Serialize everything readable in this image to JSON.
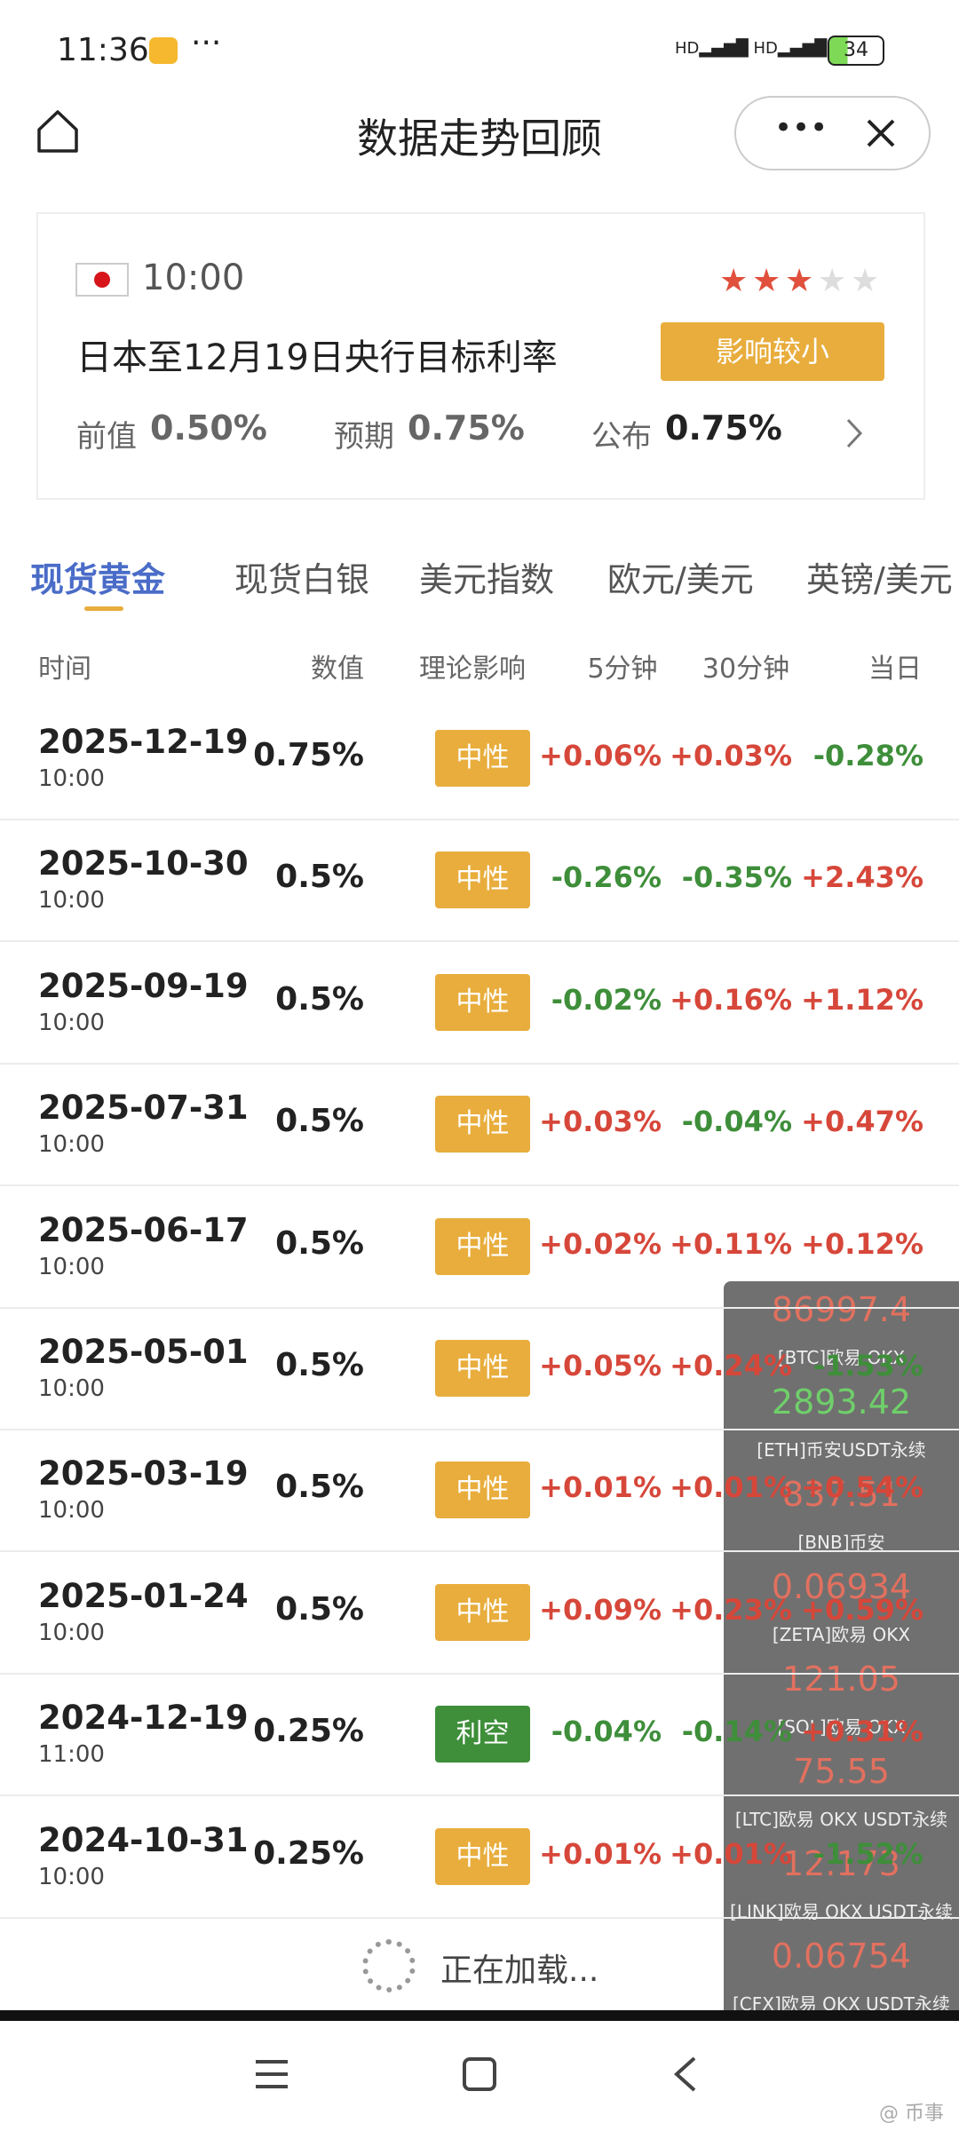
{
  "status_bar": {
    "time": "11:36",
    "battery": "34"
  },
  "header": {
    "title": "数据走势回顾"
  },
  "event": {
    "time": "10:00",
    "title": "日本至12月19日央行目标利率",
    "impact": "影响较小",
    "rating": 3,
    "rating_max": 5,
    "stats": [
      {
        "label": "前值",
        "value": "0.50%"
      },
      {
        "label": "预期",
        "value": "0.75%"
      },
      {
        "label": "公布",
        "value": "0.75%"
      }
    ]
  },
  "tabs": {
    "items": [
      "现货黄金",
      "现货白银",
      "美元指数",
      "欧元/美元",
      "英镑/美元"
    ],
    "active": 0
  },
  "table": {
    "columns": [
      "时间",
      "数值",
      "理论影响",
      "5分钟",
      "30分钟",
      "当日"
    ],
    "rows": [
      {
        "date": "2025-12-19",
        "time": "10:00",
        "value": "0.75%",
        "impact": "中性",
        "impact_color": "#e8ad3c",
        "m5": "+0.06%",
        "m30": "+0.03%",
        "day": "-0.28%"
      },
      {
        "date": "2025-10-30",
        "time": "10:00",
        "value": "0.5%",
        "impact": "中性",
        "impact_color": "#e8ad3c",
        "m5": "-0.26%",
        "m30": "-0.35%",
        "day": "+2.43%"
      },
      {
        "date": "2025-09-19",
        "time": "10:00",
        "value": "0.5%",
        "impact": "中性",
        "impact_color": "#e8ad3c",
        "m5": "-0.02%",
        "m30": "+0.16%",
        "day": "+1.12%"
      },
      {
        "date": "2025-07-31",
        "time": "10:00",
        "value": "0.5%",
        "impact": "中性",
        "impact_color": "#e8ad3c",
        "m5": "+0.03%",
        "m30": "-0.04%",
        "day": "+0.47%"
      },
      {
        "date": "2025-06-17",
        "time": "10:00",
        "value": "0.5%",
        "impact": "中性",
        "impact_color": "#e8ad3c",
        "m5": "+0.02%",
        "m30": "+0.11%",
        "day": "+0.12%"
      },
      {
        "date": "2025-05-01",
        "time": "10:00",
        "value": "0.5%",
        "impact": "中性",
        "impact_color": "#e8ad3c",
        "m5": "+0.05%",
        "m30": "+0.24%",
        "day": "-1.53%"
      },
      {
        "date": "2025-03-19",
        "time": "10:00",
        "value": "0.5%",
        "impact": "中性",
        "impact_color": "#e8ad3c",
        "m5": "+0.01%",
        "m30": "+0.01%",
        "day": "+0.54%"
      },
      {
        "date": "2025-01-24",
        "time": "10:00",
        "value": "0.5%",
        "impact": "中性",
        "impact_color": "#e8ad3c",
        "m5": "+0.09%",
        "m30": "+0.23%",
        "day": "+0.59%"
      },
      {
        "date": "2024-12-19",
        "time": "11:00",
        "value": "0.25%",
        "impact": "利空",
        "impact_color": "#3e8e3a",
        "m5": "-0.04%",
        "m30": "-0.14%",
        "day": "+0.31%"
      },
      {
        "date": "2024-10-31",
        "time": "10:00",
        "value": "0.25%",
        "impact": "中性",
        "impact_color": "#e8ad3c",
        "m5": "+0.01%",
        "m30": "+0.01%",
        "day": "-1.52%"
      }
    ]
  },
  "loading": "正在加载...",
  "ticker": [
    {
      "price": "86997.4",
      "source": "[BTC]欧易 OKX",
      "color": "#e2705f"
    },
    {
      "price": "2893.42",
      "source": "[ETH]币安USDT永续",
      "color": "#6fcf6a"
    },
    {
      "price": "837.51",
      "source": "[BNB]币安",
      "color": "#e2705f"
    },
    {
      "price": "0.06934",
      "source": "[ZETA]欧易 OKX",
      "color": "#e2705f"
    },
    {
      "price": "121.05",
      "source": "[SOL]欧易 OKX",
      "color": "#e2705f"
    },
    {
      "price": "75.55",
      "source": "[LTC]欧易 OKX USDT永续",
      "color": "#e2705f"
    },
    {
      "price": "12.173",
      "source": "[LINK]欧易 OKX USDT永续",
      "color": "#e2705f"
    },
    {
      "price": "0.06754",
      "source": "[CFX]欧易 OKX USDT永续",
      "color": "#e2705f"
    }
  ],
  "watermark": "@ 币事"
}
